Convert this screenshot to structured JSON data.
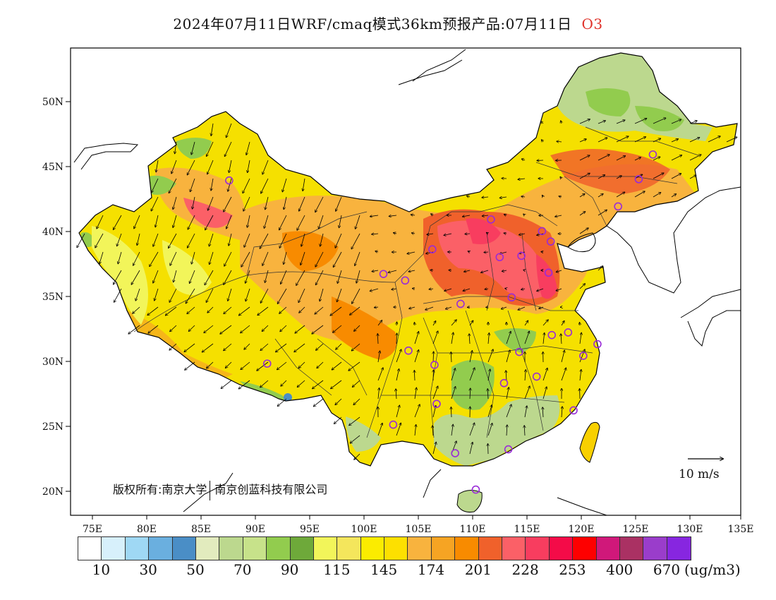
{
  "title": {
    "text": "2024年07月11日WRF/cmaq模式36km预报产品:07月11日",
    "variable": "O3"
  },
  "map": {
    "lon_range": [
      73,
      135
    ],
    "lat_range": [
      18,
      54
    ],
    "x_ticks": [
      "75E",
      "80E",
      "85E",
      "90E",
      "95E",
      "100E",
      "105E",
      "110E",
      "115E",
      "120E",
      "125E",
      "130E",
      "135E"
    ],
    "y_ticks": [
      "50N",
      "45N",
      "40N",
      "35N",
      "30N",
      "25N",
      "20N"
    ],
    "copyright": "版权所有:南京大学",
    "company": "南京创蓝科技有限公司",
    "wind_scale_label": "10 m/s"
  },
  "colorbar": {
    "colors": [
      "#ffffff",
      "#d7f0fb",
      "#9fd8f4",
      "#6aafdf",
      "#4a8ec6",
      "#e2ebbe",
      "#bcd88e",
      "#c7e28a",
      "#92cc4e",
      "#6ea93a",
      "#f2f55a",
      "#f4e65c",
      "#fbec00",
      "#fde000",
      "#f8b33e",
      "#f6a423",
      "#f88b00",
      "#f0612b",
      "#fb6067",
      "#f83d5f",
      "#f40b48",
      "#fe0000",
      "#d0187a",
      "#aa3163",
      "#9a3dcb",
      "#8726e0"
    ],
    "labels": [
      "10",
      "30",
      "50",
      "70",
      "90",
      "115",
      "145",
      "174",
      "201",
      "228",
      "253",
      "400",
      "670"
    ],
    "unit": "(ug/m3)"
  },
  "stations": [
    {
      "lon": 87.6,
      "lat": 43.8
    },
    {
      "lon": 91.1,
      "lat": 29.7
    },
    {
      "lon": 101.8,
      "lat": 36.6
    },
    {
      "lon": 103.8,
      "lat": 36.1
    },
    {
      "lon": 106.3,
      "lat": 38.5
    },
    {
      "lon": 111.7,
      "lat": 40.8
    },
    {
      "lon": 112.5,
      "lat": 37.9
    },
    {
      "lon": 114.5,
      "lat": 38.0
    },
    {
      "lon": 116.4,
      "lat": 39.9
    },
    {
      "lon": 117.2,
      "lat": 39.1
    },
    {
      "lon": 117.0,
      "lat": 36.7
    },
    {
      "lon": 113.6,
      "lat": 34.8
    },
    {
      "lon": 108.9,
      "lat": 34.3
    },
    {
      "lon": 104.1,
      "lat": 30.7
    },
    {
      "lon": 106.5,
      "lat": 29.6
    },
    {
      "lon": 114.3,
      "lat": 30.6
    },
    {
      "lon": 117.3,
      "lat": 31.9
    },
    {
      "lon": 118.8,
      "lat": 32.1
    },
    {
      "lon": 121.5,
      "lat": 31.2
    },
    {
      "lon": 120.2,
      "lat": 30.3
    },
    {
      "lon": 112.9,
      "lat": 28.2
    },
    {
      "lon": 115.9,
      "lat": 28.7
    },
    {
      "lon": 119.3,
      "lat": 26.1
    },
    {
      "lon": 113.3,
      "lat": 23.1
    },
    {
      "lon": 108.4,
      "lat": 22.8
    },
    {
      "lon": 102.7,
      "lat": 25.0
    },
    {
      "lon": 106.7,
      "lat": 26.6
    },
    {
      "lon": 110.3,
      "lat": 20.0
    },
    {
      "lon": 123.4,
      "lat": 41.8
    },
    {
      "lon": 125.3,
      "lat": 43.9
    },
    {
      "lon": 126.6,
      "lat": 45.8
    }
  ]
}
